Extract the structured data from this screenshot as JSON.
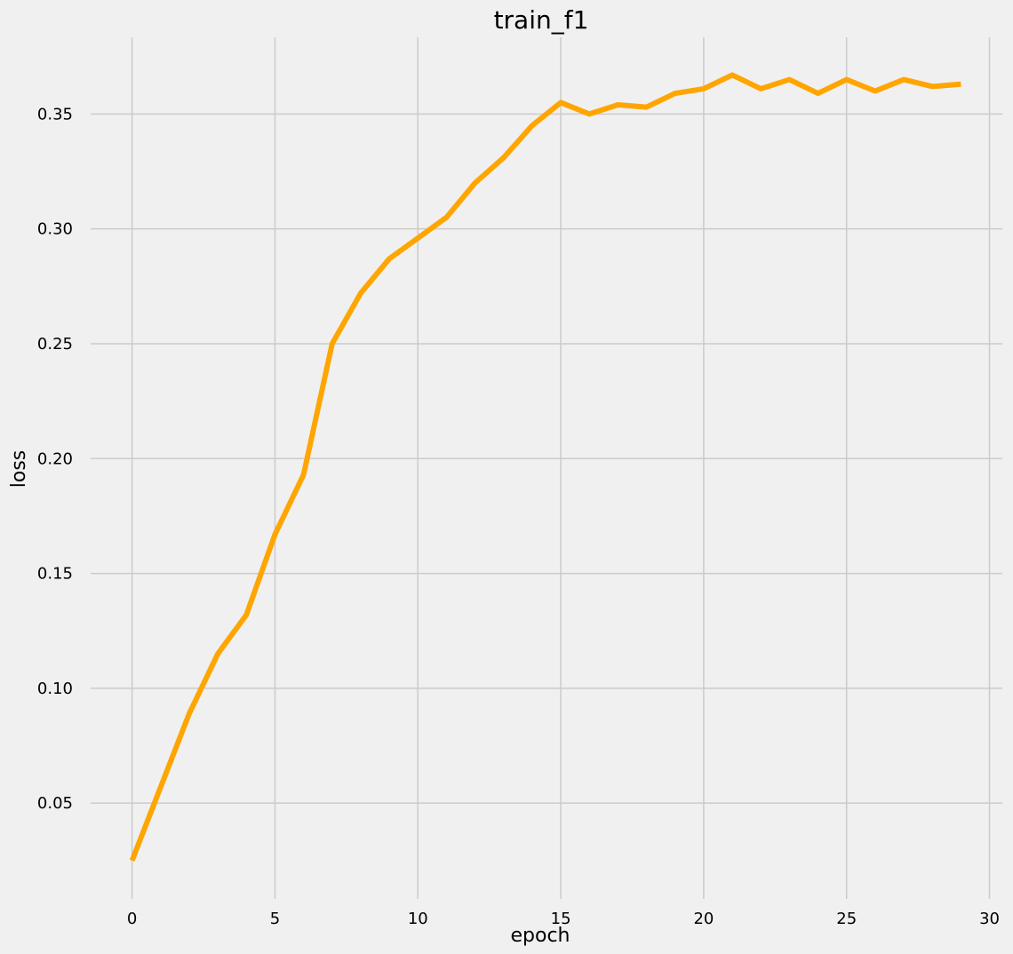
{
  "chart_data": {
    "type": "line",
    "title": "train_f1",
    "xlabel": "epoch",
    "ylabel": "loss",
    "xlim": [
      -1.45,
      30.45
    ],
    "ylim": [
      0.0083,
      0.3834
    ],
    "xticks": [
      0,
      5,
      10,
      15,
      20,
      25,
      30
    ],
    "xtick_labels": [
      "0",
      "5",
      "10",
      "15",
      "20",
      "25",
      "30"
    ],
    "yticks": [
      0.05,
      0.1,
      0.15,
      0.2,
      0.25,
      0.3,
      0.35
    ],
    "ytick_labels": [
      "0.05",
      "0.10",
      "0.15",
      "0.20",
      "0.25",
      "0.30",
      "0.35"
    ],
    "grid": true,
    "series": [
      {
        "color": "#ffa500",
        "x": [
          0,
          1,
          2,
          3,
          4,
          5,
          6,
          7,
          8,
          9,
          10,
          11,
          12,
          13,
          14,
          15,
          16,
          17,
          18,
          19,
          20,
          21,
          22,
          23,
          24,
          25,
          26,
          27,
          28,
          29
        ],
        "y": [
          0.025,
          0.057,
          0.089,
          0.115,
          0.132,
          0.167,
          0.193,
          0.25,
          0.272,
          0.287,
          0.296,
          0.305,
          0.32,
          0.331,
          0.345,
          0.355,
          0.35,
          0.354,
          0.353,
          0.359,
          0.361,
          0.367,
          0.361,
          0.365,
          0.359,
          0.365,
          0.36,
          0.365,
          0.362,
          0.363
        ]
      }
    ]
  }
}
